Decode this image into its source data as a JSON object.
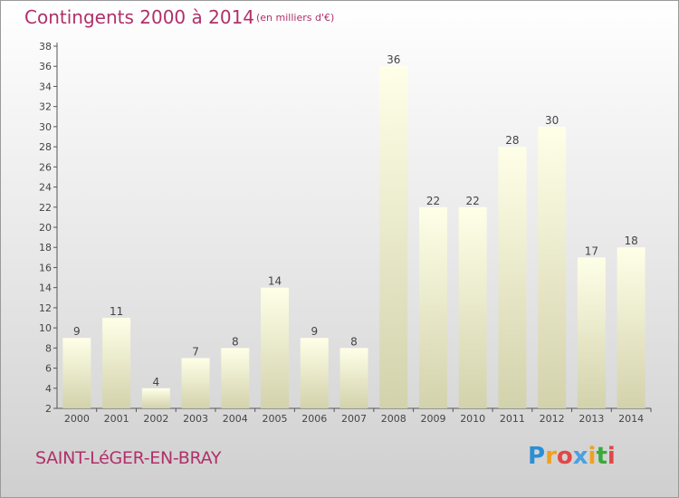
{
  "title": "Contingents 2000 à 2014",
  "unit": "(en milliers d'€)",
  "commune": "SAINT-LéGER-EN-BRAY",
  "logo": {
    "letters": [
      "P",
      "r",
      "o",
      "x",
      "i",
      "t",
      "i"
    ],
    "colors": [
      "#2a8fd6",
      "#f0a020",
      "#e04848",
      "#4aa0e0",
      "#f0a020",
      "#3aaa3a",
      "#e04848"
    ]
  },
  "chart_data": {
    "type": "bar",
    "categories": [
      "2000",
      "2001",
      "2002",
      "2003",
      "2004",
      "2005",
      "2006",
      "2007",
      "2008",
      "2009",
      "2010",
      "2011",
      "2012",
      "2013",
      "2014"
    ],
    "values": [
      9,
      11,
      4,
      7,
      8,
      14,
      9,
      8,
      36,
      22,
      22,
      28,
      30,
      17,
      18
    ],
    "ylim": [
      2,
      38
    ],
    "yticks": [
      2,
      4,
      6,
      8,
      10,
      12,
      14,
      16,
      18,
      20,
      22,
      24,
      26,
      28,
      30,
      32,
      34,
      36,
      38
    ],
    "grid": false,
    "legend": "none",
    "bar_color_top": "#ffffe8",
    "bar_color_bottom": "#d2d2ac",
    "label_color": "#444444",
    "axis_color": "#555555"
  }
}
